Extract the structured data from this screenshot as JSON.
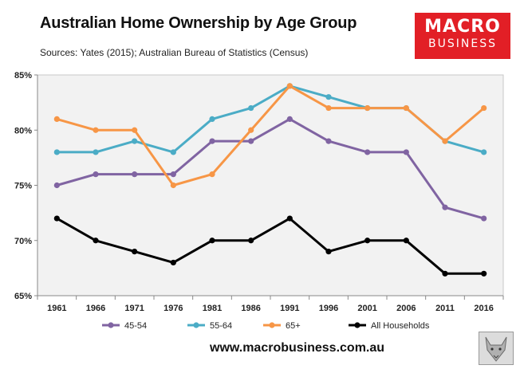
{
  "title": "Australian Home Ownership by Age Group",
  "subtitle": "Sources: Yates (2015); Australian Bureau of Statistics (Census)",
  "logo": {
    "line1": "MACRO",
    "line2": "BUSINESS"
  },
  "footer_url": "www.macrobusiness.com.au",
  "chart_data": {
    "type": "line",
    "title": "Australian Home Ownership by Age Group",
    "categories": [
      "1961",
      "1966",
      "1971",
      "1976",
      "1981",
      "1986",
      "1991",
      "1996",
      "2001",
      "2006",
      "2011",
      "2016"
    ],
    "ylim": [
      65,
      85
    ],
    "yticks": [
      65,
      70,
      75,
      80,
      85
    ],
    "ytick_labels": [
      "65%",
      "70%",
      "75%",
      "80%",
      "85%"
    ],
    "xlabel": "",
    "ylabel": "",
    "grid": false,
    "legend_position": "bottom",
    "series": [
      {
        "name": "45-54",
        "color": "#8064a2",
        "values": [
          75,
          76,
          76,
          76,
          79,
          79,
          81,
          79,
          78,
          78,
          73,
          72
        ]
      },
      {
        "name": "55-64",
        "color": "#4bacc6",
        "values": [
          78,
          78,
          79,
          78,
          81,
          82,
          84,
          83,
          82,
          82,
          79,
          78
        ]
      },
      {
        "name": "65+",
        "color": "#f79646",
        "values": [
          81,
          80,
          80,
          75,
          76,
          80,
          84,
          82,
          82,
          82,
          79,
          82
        ]
      },
      {
        "name": "All Households",
        "color": "#000000",
        "values": [
          72,
          70,
          69,
          68,
          70,
          70,
          72,
          69,
          70,
          70,
          67,
          67
        ]
      }
    ]
  }
}
